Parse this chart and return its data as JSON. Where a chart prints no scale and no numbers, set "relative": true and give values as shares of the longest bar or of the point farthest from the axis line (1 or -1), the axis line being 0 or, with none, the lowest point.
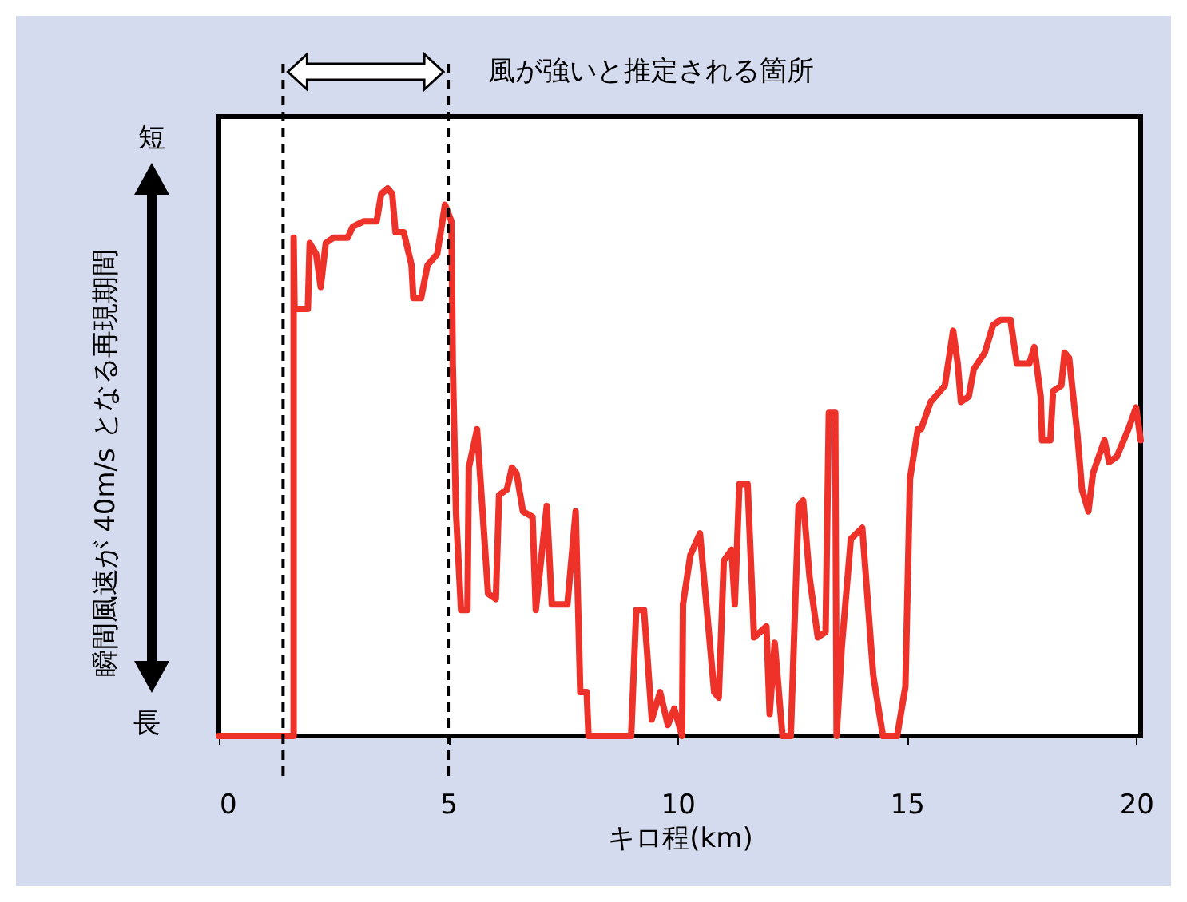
{
  "chart_data": {
    "type": "line",
    "relative": true,
    "xlabel": "キロ程(km)",
    "ylabel": "瞬間風速が 40m/s となる再現期間",
    "xlim": [
      0,
      20.1
    ],
    "xticks": [
      0,
      5,
      10,
      15,
      20
    ],
    "annotations": [
      "短",
      "長"
    ],
    "ref_lines": [
      {
        "axis": "x",
        "value": 1.4,
        "line_style": "dashed"
      },
      {
        "axis": "x",
        "value": 5,
        "line_style": "dashed",
        "label": "風が強いと推定される箇所"
      }
    ],
    "x": [
      0,
      1.63,
      1.63,
      1.65,
      1.94,
      1.98,
      2.12,
      2.22,
      2.33,
      2.5,
      2.81,
      2.92,
      3.16,
      3.44,
      3.54,
      3.68,
      3.78,
      3.85,
      4.03,
      4.2,
      4.24,
      4.41,
      4.55,
      4.76,
      4.93,
      5.07,
      5.1,
      5.17,
      5.28,
      5.42,
      5.45,
      5.63,
      5.87,
      6.04,
      6.11,
      6.28,
      6.39,
      6.49,
      6.63,
      6.84,
      6.91,
      7.15,
      7.26,
      7.6,
      7.78,
      7.88,
      8.02,
      8.06,
      8.99,
      9.1,
      9.27,
      9.34,
      9.44,
      9.62,
      9.79,
      9.93,
      10.1,
      10.12,
      10.28,
      10.49,
      10.63,
      10.8,
      10.9,
      11.01,
      11.18,
      11.25,
      11.35,
      11.53,
      11.67,
      11.94,
      12.01,
      12.12,
      12.29,
      12.47,
      12.64,
      12.74,
      12.88,
      13.06,
      13.23,
      13.3,
      13.44,
      13.47,
      13.58,
      13.78,
      14.03,
      14.27,
      14.48,
      14.79,
      14.97,
      15.07,
      15.24,
      15.31,
      15.52,
      15.83,
      16.01,
      16.11,
      16.18,
      16.35,
      16.46,
      16.7,
      16.88,
      17.05,
      17.26,
      17.4,
      17.67,
      17.78,
      17.92,
      17.95,
      18.13,
      18.19,
      18.37,
      18.44,
      18.54,
      18.72,
      18.82,
      18.96,
      19.06,
      19.31,
      19.41,
      19.58,
      19.83,
      20.0,
      20.1
    ],
    "series": [
      {
        "color": "#ee3229",
        "values": [
          0,
          0,
          0.91,
          0.78,
          0.78,
          0.9,
          0.88,
          0.82,
          0.9,
          0.91,
          0.91,
          0.93,
          0.94,
          0.94,
          0.99,
          1,
          0.99,
          0.92,
          0.92,
          0.86,
          0.8,
          0.8,
          0.86,
          0.88,
          0.97,
          0.94,
          0.68,
          0.41,
          0.23,
          0.23,
          0.49,
          0.56,
          0.26,
          0.25,
          0.44,
          0.45,
          0.49,
          0.48,
          0.41,
          0.4,
          0.23,
          0.42,
          0.24,
          0.24,
          0.41,
          0.08,
          0.08,
          0,
          0,
          0.23,
          0.23,
          0.15,
          0.03,
          0.08,
          0.02,
          0.05,
          0,
          0.24,
          0.33,
          0.37,
          0.24,
          0.08,
          0.07,
          0.32,
          0.34,
          0.24,
          0.46,
          0.46,
          0.18,
          0.2,
          0.04,
          0.17,
          0,
          0,
          0.42,
          0.43,
          0.29,
          0.18,
          0.19,
          0.59,
          0.59,
          0,
          0.16,
          0.36,
          0.38,
          0.11,
          0,
          0,
          0.09,
          0.47,
          0.56,
          0.56,
          0.61,
          0.64,
          0.74,
          0.68,
          0.61,
          0.62,
          0.67,
          0.7,
          0.75,
          0.76,
          0.76,
          0.68,
          0.68,
          0.71,
          0.62,
          0.54,
          0.54,
          0.63,
          0.64,
          0.7,
          0.69,
          0.55,
          0.45,
          0.41,
          0.48,
          0.54,
          0.5,
          0.51,
          0.56,
          0.6,
          0.54
        ]
      }
    ]
  }
}
